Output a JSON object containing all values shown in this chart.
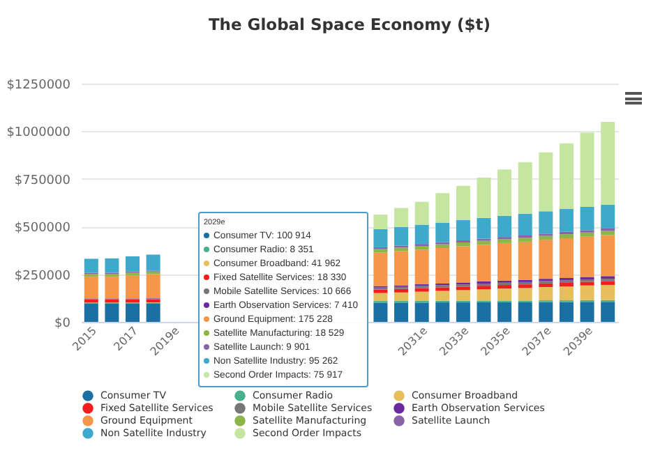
{
  "chart_data": {
    "type": "bar",
    "stacked": true,
    "title": "The Global Space Economy ($t)",
    "categories": [
      "2015",
      null,
      "2017",
      null,
      "2019e",
      null,
      null,
      null,
      null,
      null,
      null,
      null,
      null,
      null,
      null,
      null,
      "2031e",
      null,
      "2033e",
      null,
      "2035e",
      null,
      "2037e",
      null,
      "2039e",
      null
    ],
    "ylim": [
      0,
      1250000
    ],
    "yticks": [
      {
        "value": 0,
        "label": "$0"
      },
      {
        "value": 250000,
        "label": "$250000"
      },
      {
        "value": 500000,
        "label": "$500000"
      },
      {
        "value": 750000,
        "label": "$750000"
      },
      {
        "value": 1000000,
        "label": "$1000000"
      },
      {
        "value": 1250000,
        "label": "$1250000"
      }
    ],
    "grid": "y",
    "legend": "bottom",
    "series": [
      {
        "name": "Consumer TV",
        "color": "#1a6fa3",
        "values": [
          95000,
          95000,
          95000,
          95000,
          null,
          null,
          null,
          null,
          null,
          null,
          null,
          null,
          null,
          null,
          100914,
          101000,
          101000,
          102000,
          102000,
          103000,
          103000,
          103000,
          104000,
          104000,
          105000,
          105000
        ]
      },
      {
        "name": "Consumer Radio",
        "color": "#48b08a",
        "values": [
          4000,
          4000,
          4000,
          4000,
          null,
          null,
          null,
          null,
          null,
          null,
          null,
          null,
          null,
          null,
          8351,
          8400,
          8500,
          8600,
          8600,
          8700,
          8800,
          8800,
          8900,
          8900,
          9000,
          9000
        ]
      },
      {
        "name": "Consumer Broadband",
        "color": "#e6bf5c",
        "values": [
          2000,
          2000,
          2000,
          3000,
          null,
          null,
          null,
          null,
          null,
          null,
          null,
          null,
          null,
          null,
          41962,
          45000,
          49000,
          52000,
          56000,
          59000,
          63000,
          66000,
          70000,
          73000,
          77000,
          80000
        ]
      },
      {
        "name": "Fixed Satellite Services",
        "color": "#f01e1e",
        "values": [
          17000,
          17000,
          17000,
          17000,
          null,
          null,
          null,
          null,
          null,
          null,
          null,
          null,
          null,
          null,
          18330,
          18400,
          18500,
          18500,
          18600,
          18700,
          18700,
          18800,
          18800,
          18900,
          19000,
          19000
        ]
      },
      {
        "name": "Mobile Satellite Services",
        "color": "#777777",
        "values": [
          3000,
          3000,
          3000,
          3000,
          null,
          null,
          null,
          null,
          null,
          null,
          null,
          null,
          null,
          null,
          10666,
          10900,
          11100,
          11300,
          11500,
          11700,
          11900,
          12100,
          12300,
          12600,
          12800,
          13000
        ]
      },
      {
        "name": "Earth Observation Services",
        "color": "#6a2a9c",
        "values": [
          2000,
          2000,
          2000,
          2000,
          null,
          null,
          null,
          null,
          null,
          null,
          null,
          null,
          null,
          null,
          7410,
          8000,
          9000,
          9000,
          10000,
          11000,
          11000,
          12000,
          12000,
          13000,
          13000,
          14000
        ]
      },
      {
        "name": "Ground Equipment",
        "color": "#f5964a",
        "values": [
          115000,
          115000,
          122000,
          126000,
          null,
          null,
          null,
          null,
          null,
          null,
          null,
          null,
          null,
          null,
          175228,
          179000,
          182000,
          186000,
          190000,
          193000,
          197000,
          200000,
          204000,
          208000,
          211000,
          215000
        ]
      },
      {
        "name": "Satellite Manufacturing",
        "color": "#8db54a",
        "values": [
          14000,
          14000,
          14000,
          14000,
          null,
          null,
          null,
          null,
          null,
          null,
          null,
          null,
          null,
          null,
          18529,
          18800,
          19200,
          19500,
          19800,
          20100,
          20400,
          20700,
          21000,
          21400,
          21700,
          22000
        ]
      },
      {
        "name": "Satellite Launch",
        "color": "#8a63a8",
        "values": [
          5000,
          5000,
          5000,
          5000,
          null,
          null,
          null,
          null,
          null,
          null,
          null,
          null,
          null,
          null,
          9901,
          10200,
          10500,
          10700,
          11000,
          11300,
          11600,
          11900,
          12200,
          12400,
          12700,
          13000
        ]
      },
      {
        "name": "Non Satellite Industry",
        "color": "#3fa9cc",
        "values": [
          74000,
          76000,
          80000,
          84000,
          null,
          null,
          null,
          null,
          null,
          null,
          null,
          null,
          null,
          null,
          95262,
          98000,
          101000,
          103000,
          106000,
          109000,
          111000,
          114000,
          117000,
          120000,
          122000,
          125000
        ]
      },
      {
        "name": "Second Order Impacts",
        "color": "#c5e6a0",
        "values": [
          0,
          0,
          0,
          0,
          null,
          null,
          null,
          null,
          null,
          null,
          null,
          null,
          null,
          null,
          75917,
          100000,
          120000,
          155000,
          180000,
          211000,
          243000,
          271000,
          309000,
          344000,
          390000,
          434000
        ]
      }
    ],
    "annotations": [
      "2029e",
      "Consumer TV: 100 914",
      "Consumer Radio: 8 351",
      "Consumer Broadband: 41 962",
      "Fixed Satellite Services: 18 330",
      "Mobile Satellite Services: 10 666",
      "Earth Observation Services: 7 410",
      "Ground Equipment: 175 228",
      "Satellite Manufacturing: 18 529",
      "Satellite Launch: 9 901",
      "Non Satellite Industry: 95 262",
      "Second Order Impacts: 75 917"
    ]
  }
}
